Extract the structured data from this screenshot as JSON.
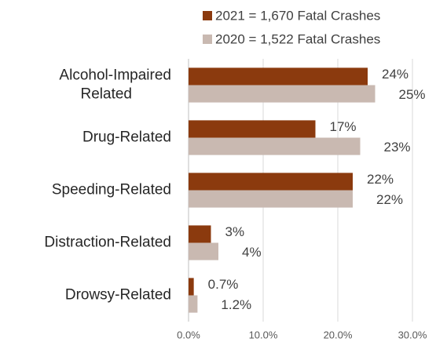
{
  "chart_data": {
    "type": "bar",
    "orientation": "horizontal",
    "categories": [
      "Alcohol-Impaired Related",
      "Drug-Related",
      "Speeding-Related",
      "Distraction-Related",
      "Drowsy-Related"
    ],
    "series": [
      {
        "name": "2021 = 1,670 Fatal Crashes",
        "color": "#8b3a0e",
        "values": [
          24,
          17,
          22,
          3,
          0.7
        ],
        "value_labels": [
          "24%",
          "17%",
          "22%",
          "3%",
          "0.7%"
        ]
      },
      {
        "name": "2020 = 1,522 Fatal Crashes",
        "color": "#c9b9b1",
        "values": [
          25,
          23,
          22,
          4,
          1.2
        ],
        "value_labels": [
          "25%",
          "23%",
          "22%",
          "4%",
          "1.2%"
        ]
      }
    ],
    "xlim": [
      0,
      30
    ],
    "xticks": [
      {
        "value": 0,
        "label": "0.0%"
      },
      {
        "value": 10,
        "label": "10.0%"
      },
      {
        "value": 20,
        "label": "20.0%"
      },
      {
        "value": 30,
        "label": "30.0%"
      }
    ],
    "grid": true,
    "legend": "top"
  }
}
